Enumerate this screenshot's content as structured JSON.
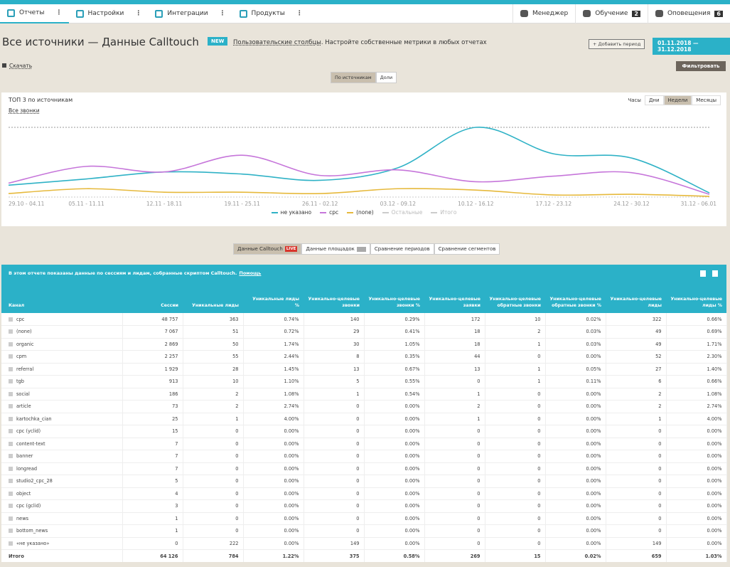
{
  "nav": {
    "items": [
      "Отчеты",
      "Настройки",
      "Интеграции",
      "Продукты"
    ],
    "right": [
      {
        "label": "Менеджер"
      },
      {
        "label": "Обучение",
        "badge": "2"
      },
      {
        "label": "Оповещения",
        "badge": "6"
      }
    ]
  },
  "header": {
    "title": "Все источники — Данные Calltouch",
    "badge": "NEW",
    "link": "Пользовательские столбцы",
    "note": ". Настройте собственные метрики в любых отчетах",
    "add_period": "+ Добавить период",
    "period": "01.11.2018  —  31.12.2018"
  },
  "toolbar": {
    "download": "Скачать",
    "filter": "Фильтровать",
    "view_toggle": [
      "По источникам",
      "Доли"
    ],
    "active_view": 0
  },
  "chart_data": {
    "type": "line",
    "title": "ТОП 3 по источникам",
    "dropdown": "Все звонки",
    "granularity": [
      "Часы",
      "Дни",
      "Недели",
      "Месяцы"
    ],
    "active_granularity": 2,
    "categories": [
      "29.10 - 04.11",
      "05.11 - 11.11",
      "12.11 - 18.11",
      "19.11 - 25.11",
      "26.11 - 02.12",
      "03.12 - 09.12",
      "10.12 - 16.12",
      "17.12 - 23.12",
      "24.12 - 30.12",
      "31.12 - 06.01"
    ],
    "series": [
      {
        "name": "не указано",
        "color": "#2fb2c6",
        "values": [
          17,
          26,
          36,
          33,
          24,
          42,
          100,
          62,
          56,
          6
        ]
      },
      {
        "name": "cpc",
        "color": "#c676da",
        "values": [
          20,
          44,
          36,
          60,
          31,
          39,
          22,
          30,
          35,
          4
        ]
      },
      {
        "name": "(none)",
        "color": "#e6b93c",
        "values": [
          5,
          12,
          7,
          7,
          5,
          12,
          10,
          3,
          4,
          1
        ]
      }
    ],
    "hidden_series": [
      "Остальные",
      "Итого"
    ],
    "ylim": [
      0,
      100
    ]
  },
  "tabs": [
    {
      "label": "Данные Calltouch",
      "badge": "LIVE"
    },
    {
      "label": "Данные площадок"
    },
    {
      "label": "Сравнение периодов"
    },
    {
      "label": "Сравнение сегментов"
    }
  ],
  "table": {
    "info": "В этом отчете показаны данные по сессиям и лидам, собранные скриптом Calltouch.",
    "help": "Помощь",
    "columns": [
      "Канал",
      "Сессии",
      "Уникальные лиды",
      "Уникальные лиды %",
      "Уникально-целевые звонки",
      "Уникально-целевые звонки %",
      "Уникально-целевые заявки",
      "Уникально-целевые обратные звонки",
      "Уникально-целевые обратные звонки %",
      "Уникально-целевые лиды",
      "Уникально-целевые лиды %"
    ],
    "rows": [
      [
        "cpc",
        "48 757",
        "363",
        "0.74%",
        "140",
        "0.29%",
        "172",
        "10",
        "0.02%",
        "322",
        "0.66%"
      ],
      [
        "(none)",
        "7 067",
        "51",
        "0.72%",
        "29",
        "0.41%",
        "18",
        "2",
        "0.03%",
        "49",
        "0.69%"
      ],
      [
        "organic",
        "2 869",
        "50",
        "1.74%",
        "30",
        "1.05%",
        "18",
        "1",
        "0.03%",
        "49",
        "1.71%"
      ],
      [
        "cpm",
        "2 257",
        "55",
        "2.44%",
        "8",
        "0.35%",
        "44",
        "0",
        "0.00%",
        "52",
        "2.30%"
      ],
      [
        "referral",
        "1 929",
        "28",
        "1.45%",
        "13",
        "0.67%",
        "13",
        "1",
        "0.05%",
        "27",
        "1.40%"
      ],
      [
        "tgb",
        "913",
        "10",
        "1.10%",
        "5",
        "0.55%",
        "0",
        "1",
        "0.11%",
        "6",
        "0.66%"
      ],
      [
        "social",
        "186",
        "2",
        "1.08%",
        "1",
        "0.54%",
        "1",
        "0",
        "0.00%",
        "2",
        "1.08%"
      ],
      [
        "article",
        "73",
        "2",
        "2.74%",
        "0",
        "0.00%",
        "2",
        "0",
        "0.00%",
        "2",
        "2.74%"
      ],
      [
        "kartochka_cian",
        "25",
        "1",
        "4.00%",
        "0",
        "0.00%",
        "1",
        "0",
        "0.00%",
        "1",
        "4.00%"
      ],
      [
        "cpc (yclid)",
        "15",
        "0",
        "0.00%",
        "0",
        "0.00%",
        "0",
        "0",
        "0.00%",
        "0",
        "0.00%"
      ],
      [
        "content-text",
        "7",
        "0",
        "0.00%",
        "0",
        "0.00%",
        "0",
        "0",
        "0.00%",
        "0",
        "0.00%"
      ],
      [
        "banner",
        "7",
        "0",
        "0.00%",
        "0",
        "0.00%",
        "0",
        "0",
        "0.00%",
        "0",
        "0.00%"
      ],
      [
        "longread",
        "7",
        "0",
        "0.00%",
        "0",
        "0.00%",
        "0",
        "0",
        "0.00%",
        "0",
        "0.00%"
      ],
      [
        "studio2_cpc_28",
        "5",
        "0",
        "0.00%",
        "0",
        "0.00%",
        "0",
        "0",
        "0.00%",
        "0",
        "0.00%"
      ],
      [
        "object",
        "4",
        "0",
        "0.00%",
        "0",
        "0.00%",
        "0",
        "0",
        "0.00%",
        "0",
        "0.00%"
      ],
      [
        "cpc (gclid)",
        "3",
        "0",
        "0.00%",
        "0",
        "0.00%",
        "0",
        "0",
        "0.00%",
        "0",
        "0.00%"
      ],
      [
        "news",
        "1",
        "0",
        "0.00%",
        "0",
        "0.00%",
        "0",
        "0",
        "0.00%",
        "0",
        "0.00%"
      ],
      [
        "bottom_news",
        "1",
        "0",
        "0.00%",
        "0",
        "0.00%",
        "0",
        "0",
        "0.00%",
        "0",
        "0.00%"
      ],
      [
        "«не указано»",
        "0",
        "222",
        "0.00%",
        "149",
        "0.00%",
        "0",
        "0",
        "0.00%",
        "149",
        "0.00%"
      ]
    ],
    "total": [
      "Итого",
      "64 126",
      "784",
      "1.22%",
      "375",
      "0.58%",
      "269",
      "15",
      "0.02%",
      "659",
      "1.03%"
    ]
  }
}
